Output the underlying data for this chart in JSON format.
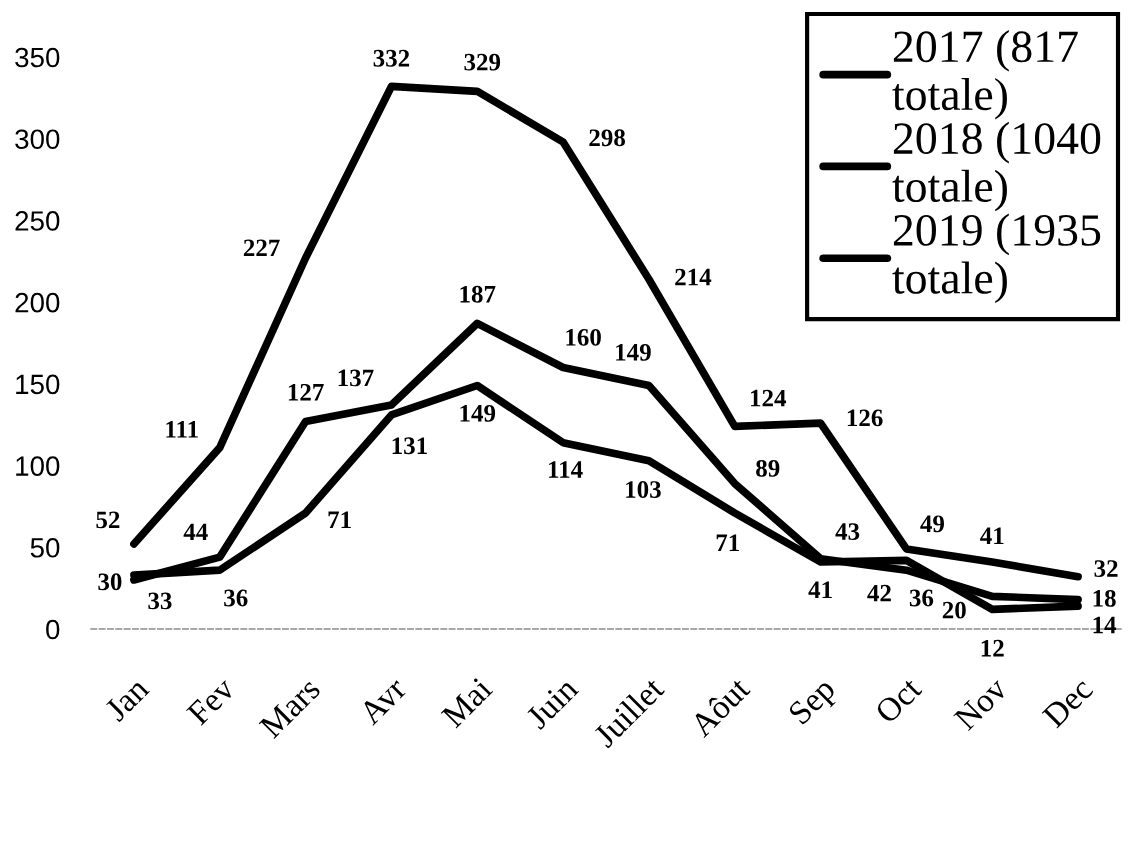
{
  "chart_data": {
    "type": "line",
    "categories": [
      "Jan",
      "Fev",
      "Mars",
      "Avr",
      "Mai",
      "Juin",
      "Juillet",
      "Aôut",
      "Sep",
      "Oct",
      "Nov",
      "Dec"
    ],
    "ylim": [
      0,
      350
    ],
    "yticks": [
      0,
      50,
      100,
      150,
      200,
      250,
      300,
      350
    ],
    "legend": "top right",
    "data_labels": true,
    "line_style": "solid",
    "series": [
      {
        "name": "2017 (817 totale)",
        "color": "#000000",
        "values": [
          33,
          36,
          71,
          131,
          149,
          114,
          103,
          71,
          41,
          42,
          12,
          14
        ]
      },
      {
        "name": "2018 (1040 totale)",
        "color": "#000000",
        "values": [
          30,
          44,
          127,
          137,
          187,
          160,
          149,
          89,
          43,
          36,
          20,
          18
        ]
      },
      {
        "name": "2019 (1935 totale)",
        "color": "#000000",
        "values": [
          52,
          111,
          227,
          332,
          329,
          298,
          214,
          124,
          126,
          49,
          41,
          32
        ]
      }
    ]
  }
}
